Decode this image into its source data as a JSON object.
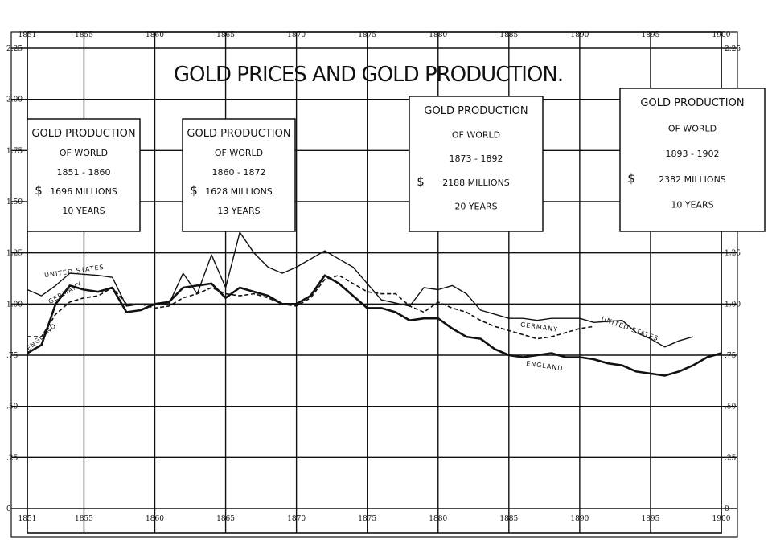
{
  "chart_data": {
    "type": "line",
    "title": "GOLD PRICES AND GOLD PRODUCTION.",
    "xlim": [
      1851,
      1900
    ],
    "ylim": [
      0,
      2.25
    ],
    "x_ticks_top": [
      "1851",
      "1855",
      "1860",
      "1865",
      "1870",
      "1875",
      "1880",
      "1885",
      "1890",
      "1895",
      "1900"
    ],
    "x_ticks_bottom": [
      "1851",
      "1855",
      "1860",
      "1865",
      "1870",
      "1875",
      "1880",
      "1885",
      "1890",
      "1895",
      "1900"
    ],
    "y_ticks_left": [
      "2.25",
      "2.00",
      "1.75",
      "1.50",
      "1.25",
      "1.00",
      ".75",
      ".50",
      ".25",
      "0"
    ],
    "y_ticks_right": [
      "2.25",
      "2.00",
      "1.75",
      "1.50",
      "1.25",
      "1.00",
      ".75",
      ".50",
      ".25",
      "0"
    ],
    "series": [
      {
        "name": "UNITED STATES",
        "style": "thin",
        "color": "#111111",
        "points": [
          [
            1851,
            1.07
          ],
          [
            1852,
            1.04
          ],
          [
            1853,
            1.09
          ],
          [
            1854,
            1.15
          ],
          [
            1856,
            1.14
          ],
          [
            1857,
            1.13
          ],
          [
            1858,
            0.99
          ],
          [
            1859,
            1.0
          ],
          [
            1860,
            1.0
          ],
          [
            1861,
            1.0
          ],
          [
            1862,
            1.15
          ],
          [
            1863,
            1.05
          ],
          [
            1864,
            1.24
          ],
          [
            1865,
            1.08
          ],
          [
            1866,
            1.35
          ],
          [
            1867,
            1.25
          ],
          [
            1868,
            1.18
          ],
          [
            1869,
            1.15
          ],
          [
            1870,
            1.18
          ],
          [
            1871,
            1.22
          ],
          [
            1872,
            1.26
          ],
          [
            1873,
            1.22
          ],
          [
            1874,
            1.18
          ],
          [
            1875,
            1.1
          ],
          [
            1876,
            1.02
          ],
          [
            1878,
            0.99
          ],
          [
            1879,
            1.08
          ],
          [
            1880,
            1.07
          ],
          [
            1881,
            1.09
          ],
          [
            1882,
            1.05
          ],
          [
            1883,
            0.97
          ],
          [
            1884,
            0.95
          ],
          [
            1885,
            0.93
          ],
          [
            1886,
            0.93
          ],
          [
            1887,
            0.92
          ],
          [
            1888,
            0.93
          ],
          [
            1890,
            0.93
          ],
          [
            1891,
            0.91
          ],
          [
            1893,
            0.92
          ],
          [
            1894,
            0.86
          ],
          [
            1895,
            0.83
          ],
          [
            1896,
            0.79
          ],
          [
            1897,
            0.82
          ],
          [
            1898,
            0.84
          ]
        ]
      },
      {
        "name": "GERMANY",
        "style": "dashed",
        "color": "#111111",
        "points": [
          [
            1851,
            0.84
          ],
          [
            1852,
            0.84
          ],
          [
            1853,
            0.95
          ],
          [
            1854,
            1.01
          ],
          [
            1855,
            1.03
          ],
          [
            1856,
            1.04
          ],
          [
            1857,
            1.08
          ],
          [
            1858,
            1.0
          ],
          [
            1859,
            1.0
          ],
          [
            1860,
            0.98
          ],
          [
            1861,
            0.99
          ],
          [
            1862,
            1.03
          ],
          [
            1863,
            1.05
          ],
          [
            1864,
            1.08
          ],
          [
            1865,
            1.05
          ],
          [
            1866,
            1.04
          ],
          [
            1867,
            1.05
          ],
          [
            1868,
            1.03
          ],
          [
            1869,
            1.0
          ],
          [
            1870,
            0.99
          ],
          [
            1871,
            1.03
          ],
          [
            1872,
            1.12
          ],
          [
            1873,
            1.14
          ],
          [
            1874,
            1.1
          ],
          [
            1875,
            1.06
          ],
          [
            1876,
            1.05
          ],
          [
            1877,
            1.05
          ],
          [
            1878,
            0.99
          ],
          [
            1879,
            0.96
          ],
          [
            1880,
            1.01
          ],
          [
            1881,
            0.98
          ],
          [
            1882,
            0.96
          ],
          [
            1883,
            0.92
          ],
          [
            1884,
            0.89
          ],
          [
            1885,
            0.87
          ],
          [
            1886,
            0.85
          ],
          [
            1887,
            0.83
          ],
          [
            1888,
            0.84
          ],
          [
            1889,
            0.86
          ],
          [
            1890,
            0.88
          ],
          [
            1891,
            0.89
          ]
        ]
      },
      {
        "name": "ENGLAND",
        "style": "thick",
        "color": "#111111",
        "points": [
          [
            1851,
            0.76
          ],
          [
            1852,
            0.8
          ],
          [
            1853,
            1.0
          ],
          [
            1854,
            1.09
          ],
          [
            1855,
            1.07
          ],
          [
            1856,
            1.06
          ],
          [
            1857,
            1.08
          ],
          [
            1858,
            0.96
          ],
          [
            1859,
            0.97
          ],
          [
            1860,
            1.0
          ],
          [
            1861,
            1.01
          ],
          [
            1862,
            1.08
          ],
          [
            1863,
            1.09
          ],
          [
            1864,
            1.1
          ],
          [
            1865,
            1.03
          ],
          [
            1866,
            1.08
          ],
          [
            1867,
            1.06
          ],
          [
            1868,
            1.04
          ],
          [
            1869,
            1.0
          ],
          [
            1870,
            1.0
          ],
          [
            1871,
            1.04
          ],
          [
            1872,
            1.14
          ],
          [
            1873,
            1.1
          ],
          [
            1874,
            1.04
          ],
          [
            1875,
            0.98
          ],
          [
            1876,
            0.98
          ],
          [
            1877,
            0.96
          ],
          [
            1878,
            0.92
          ],
          [
            1879,
            0.93
          ],
          [
            1880,
            0.93
          ],
          [
            1881,
            0.88
          ],
          [
            1882,
            0.84
          ],
          [
            1883,
            0.83
          ],
          [
            1884,
            0.78
          ],
          [
            1885,
            0.75
          ],
          [
            1886,
            0.74
          ],
          [
            1887,
            0.75
          ],
          [
            1888,
            0.76
          ],
          [
            1889,
            0.74
          ],
          [
            1890,
            0.74
          ],
          [
            1891,
            0.73
          ],
          [
            1892,
            0.71
          ],
          [
            1893,
            0.7
          ],
          [
            1894,
            0.67
          ],
          [
            1895,
            0.66
          ],
          [
            1896,
            0.65
          ],
          [
            1897,
            0.67
          ],
          [
            1898,
            0.7
          ],
          [
            1899,
            0.74
          ],
          [
            1900,
            0.76
          ]
        ]
      }
    ],
    "boxes": [
      {
        "lines": [
          "GOLD PRODUCTION",
          "OF WORLD",
          "1851 - 1860",
          "1696 MILLIONS",
          "10 YEARS"
        ],
        "currency": "$"
      },
      {
        "lines": [
          "GOLD PRODUCTION",
          "OF WORLD",
          "1860 - 1872",
          "1628 MILLIONS",
          "13 YEARS"
        ],
        "currency": "$"
      },
      {
        "lines": [
          "GOLD PRODUCTION",
          "OF WORLD",
          "1873 - 1892",
          "2188 MILLIONS",
          "20 YEARS"
        ],
        "currency": "$"
      },
      {
        "lines": [
          "GOLD PRODUCTION",
          "OF WORLD",
          "1893 - 1902",
          "2382 MILLIONS",
          "10 YEARS"
        ],
        "currency": "$"
      }
    ],
    "grid": true
  }
}
